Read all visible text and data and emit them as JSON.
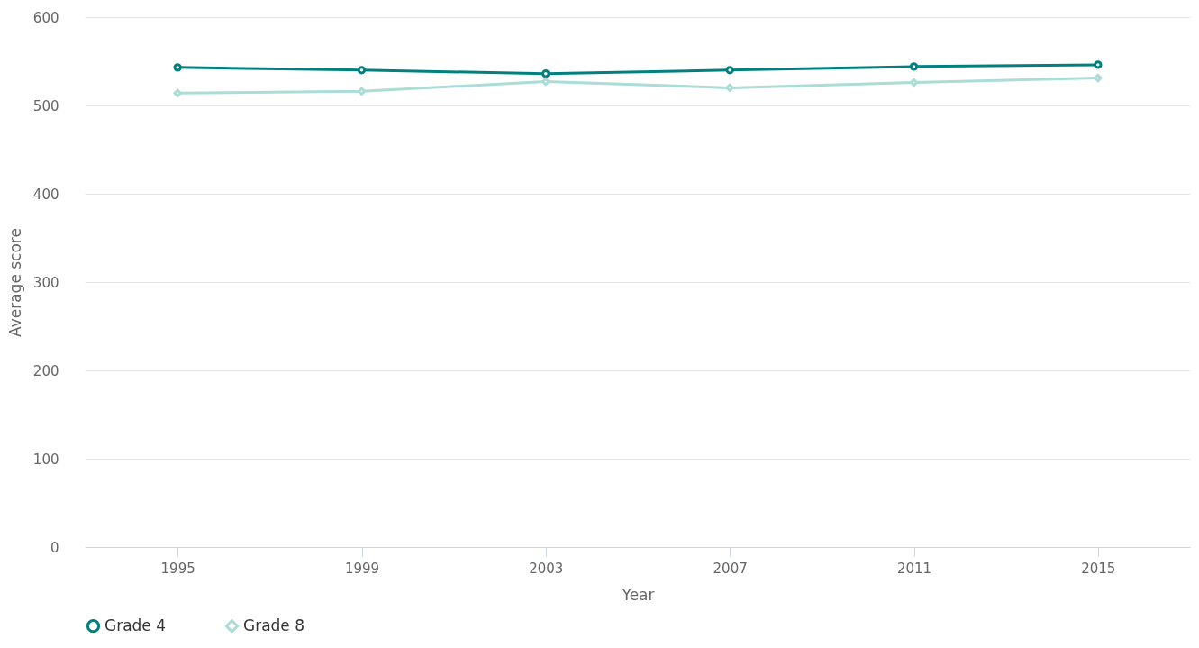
{
  "chart_data": {
    "type": "line",
    "xlabel": "Year",
    "ylabel": "Average score",
    "categories": [
      "1995",
      "1999",
      "2003",
      "2007",
      "2011",
      "2015"
    ],
    "series": [
      {
        "name": "Grade 4",
        "color": "#00807f",
        "marker": "circle",
        "values": [
          543,
          540,
          536,
          540,
          544,
          546
        ]
      },
      {
        "name": "Grade 8",
        "color": "#abdcd6",
        "marker": "diamond",
        "values": [
          514,
          516,
          527,
          520,
          526,
          531
        ]
      }
    ],
    "ylim": [
      0,
      600
    ],
    "yticks": [
      0,
      100,
      200,
      300,
      400,
      500,
      600
    ],
    "grid": "y",
    "legend": "bottom"
  }
}
